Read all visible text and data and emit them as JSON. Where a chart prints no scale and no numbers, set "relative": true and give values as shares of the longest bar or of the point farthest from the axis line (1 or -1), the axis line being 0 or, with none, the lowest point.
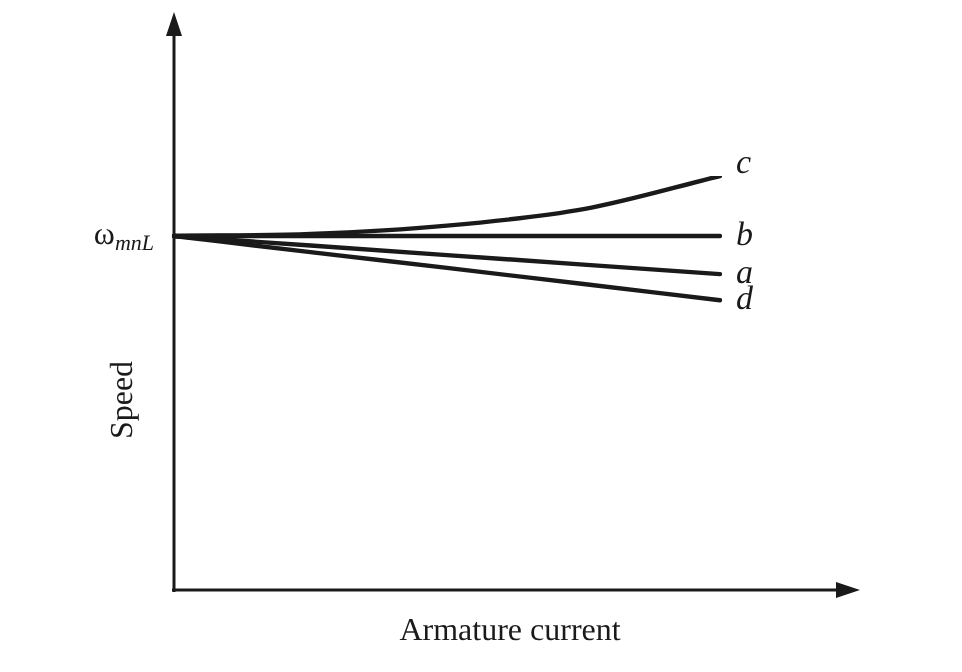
{
  "chart_data": {
    "type": "line",
    "relative": true,
    "xlabel": "Armature current",
    "ylabel": "Speed",
    "categories": [
      null,
      null,
      null,
      null,
      null
    ],
    "series": [
      {
        "name": "c",
        "color": "#1a1a1a",
        "values": [
          0.855,
          0.86,
          0.88,
          0.92,
          1
        ]
      },
      {
        "name": "b",
        "color": "#1a1a1a",
        "values": [
          0.855,
          0.855,
          0.855,
          0.855,
          0.855
        ]
      },
      {
        "name": "a",
        "color": "#1a1a1a",
        "values": [
          0.855,
          0.832,
          0.809,
          0.786,
          0.763
        ]
      },
      {
        "name": "d",
        "color": "#1a1a1a",
        "values": [
          0.855,
          0.816,
          0.778,
          0.739,
          0.7
        ]
      }
    ],
    "annotations": [
      "ω$_{mnL}$"
    ],
    "legend": false,
    "marker": "none",
    "line_style": "solid"
  }
}
